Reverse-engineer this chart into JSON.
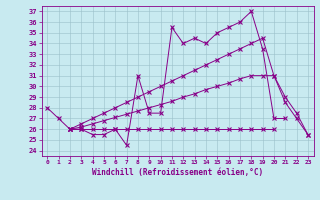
{
  "bg_color": "#c8eaf0",
  "line_color": "#880088",
  "xlabel": "Windchill (Refroidissement éolien,°C)",
  "xlim": [
    -0.5,
    23.5
  ],
  "ylim": [
    23.5,
    37.5
  ],
  "xticks": [
    0,
    1,
    2,
    3,
    4,
    5,
    6,
    7,
    8,
    9,
    10,
    11,
    12,
    13,
    14,
    15,
    16,
    17,
    18,
    19,
    20,
    21,
    22,
    23
  ],
  "yticks": [
    24,
    25,
    26,
    27,
    28,
    29,
    30,
    31,
    32,
    33,
    34,
    35,
    36,
    37
  ],
  "line1_x": [
    0,
    1,
    2,
    3,
    4,
    5,
    6,
    7,
    8,
    9,
    10,
    11,
    12,
    13,
    14,
    15,
    16,
    17,
    18,
    19,
    20,
    21
  ],
  "line1_y": [
    28,
    27,
    26,
    26,
    25.5,
    25.5,
    26,
    24.5,
    31,
    27.5,
    27.5,
    35.5,
    34,
    34.5,
    34,
    35,
    35.5,
    36,
    37,
    33.5,
    27,
    27
  ],
  "line2_x": [
    2,
    3,
    4,
    5,
    6,
    7,
    8,
    9,
    10,
    11,
    12,
    13,
    14,
    15,
    16,
    17,
    18,
    19,
    20
  ],
  "line2_y": [
    26,
    26,
    26,
    26,
    26,
    26,
    26,
    26,
    26,
    26,
    26,
    26,
    26,
    26,
    26,
    26,
    26,
    26,
    26
  ],
  "line3_x": [
    2,
    3,
    4,
    5,
    6,
    7,
    8,
    9,
    10,
    11,
    12,
    13,
    14,
    15,
    16,
    17,
    18,
    19,
    20,
    21,
    22,
    23
  ],
  "line3_y": [
    26,
    26.5,
    27,
    27.5,
    28,
    28.5,
    29,
    29.5,
    30,
    30.5,
    31,
    31.5,
    32,
    32.5,
    33,
    33.5,
    34,
    34.5,
    31,
    28.5,
    27,
    25.5
  ],
  "line4_x": [
    2,
    3,
    4,
    5,
    6,
    7,
    8,
    9,
    10,
    11,
    12,
    13,
    14,
    15,
    16,
    17,
    18,
    19,
    20,
    21,
    22,
    23
  ],
  "line4_y": [
    26,
    26.2,
    26.5,
    26.8,
    27.1,
    27.4,
    27.7,
    28.0,
    28.3,
    28.6,
    29.0,
    29.3,
    29.7,
    30.0,
    30.3,
    30.7,
    31.0,
    31.0,
    31.0,
    29.0,
    27.5,
    25.5
  ]
}
